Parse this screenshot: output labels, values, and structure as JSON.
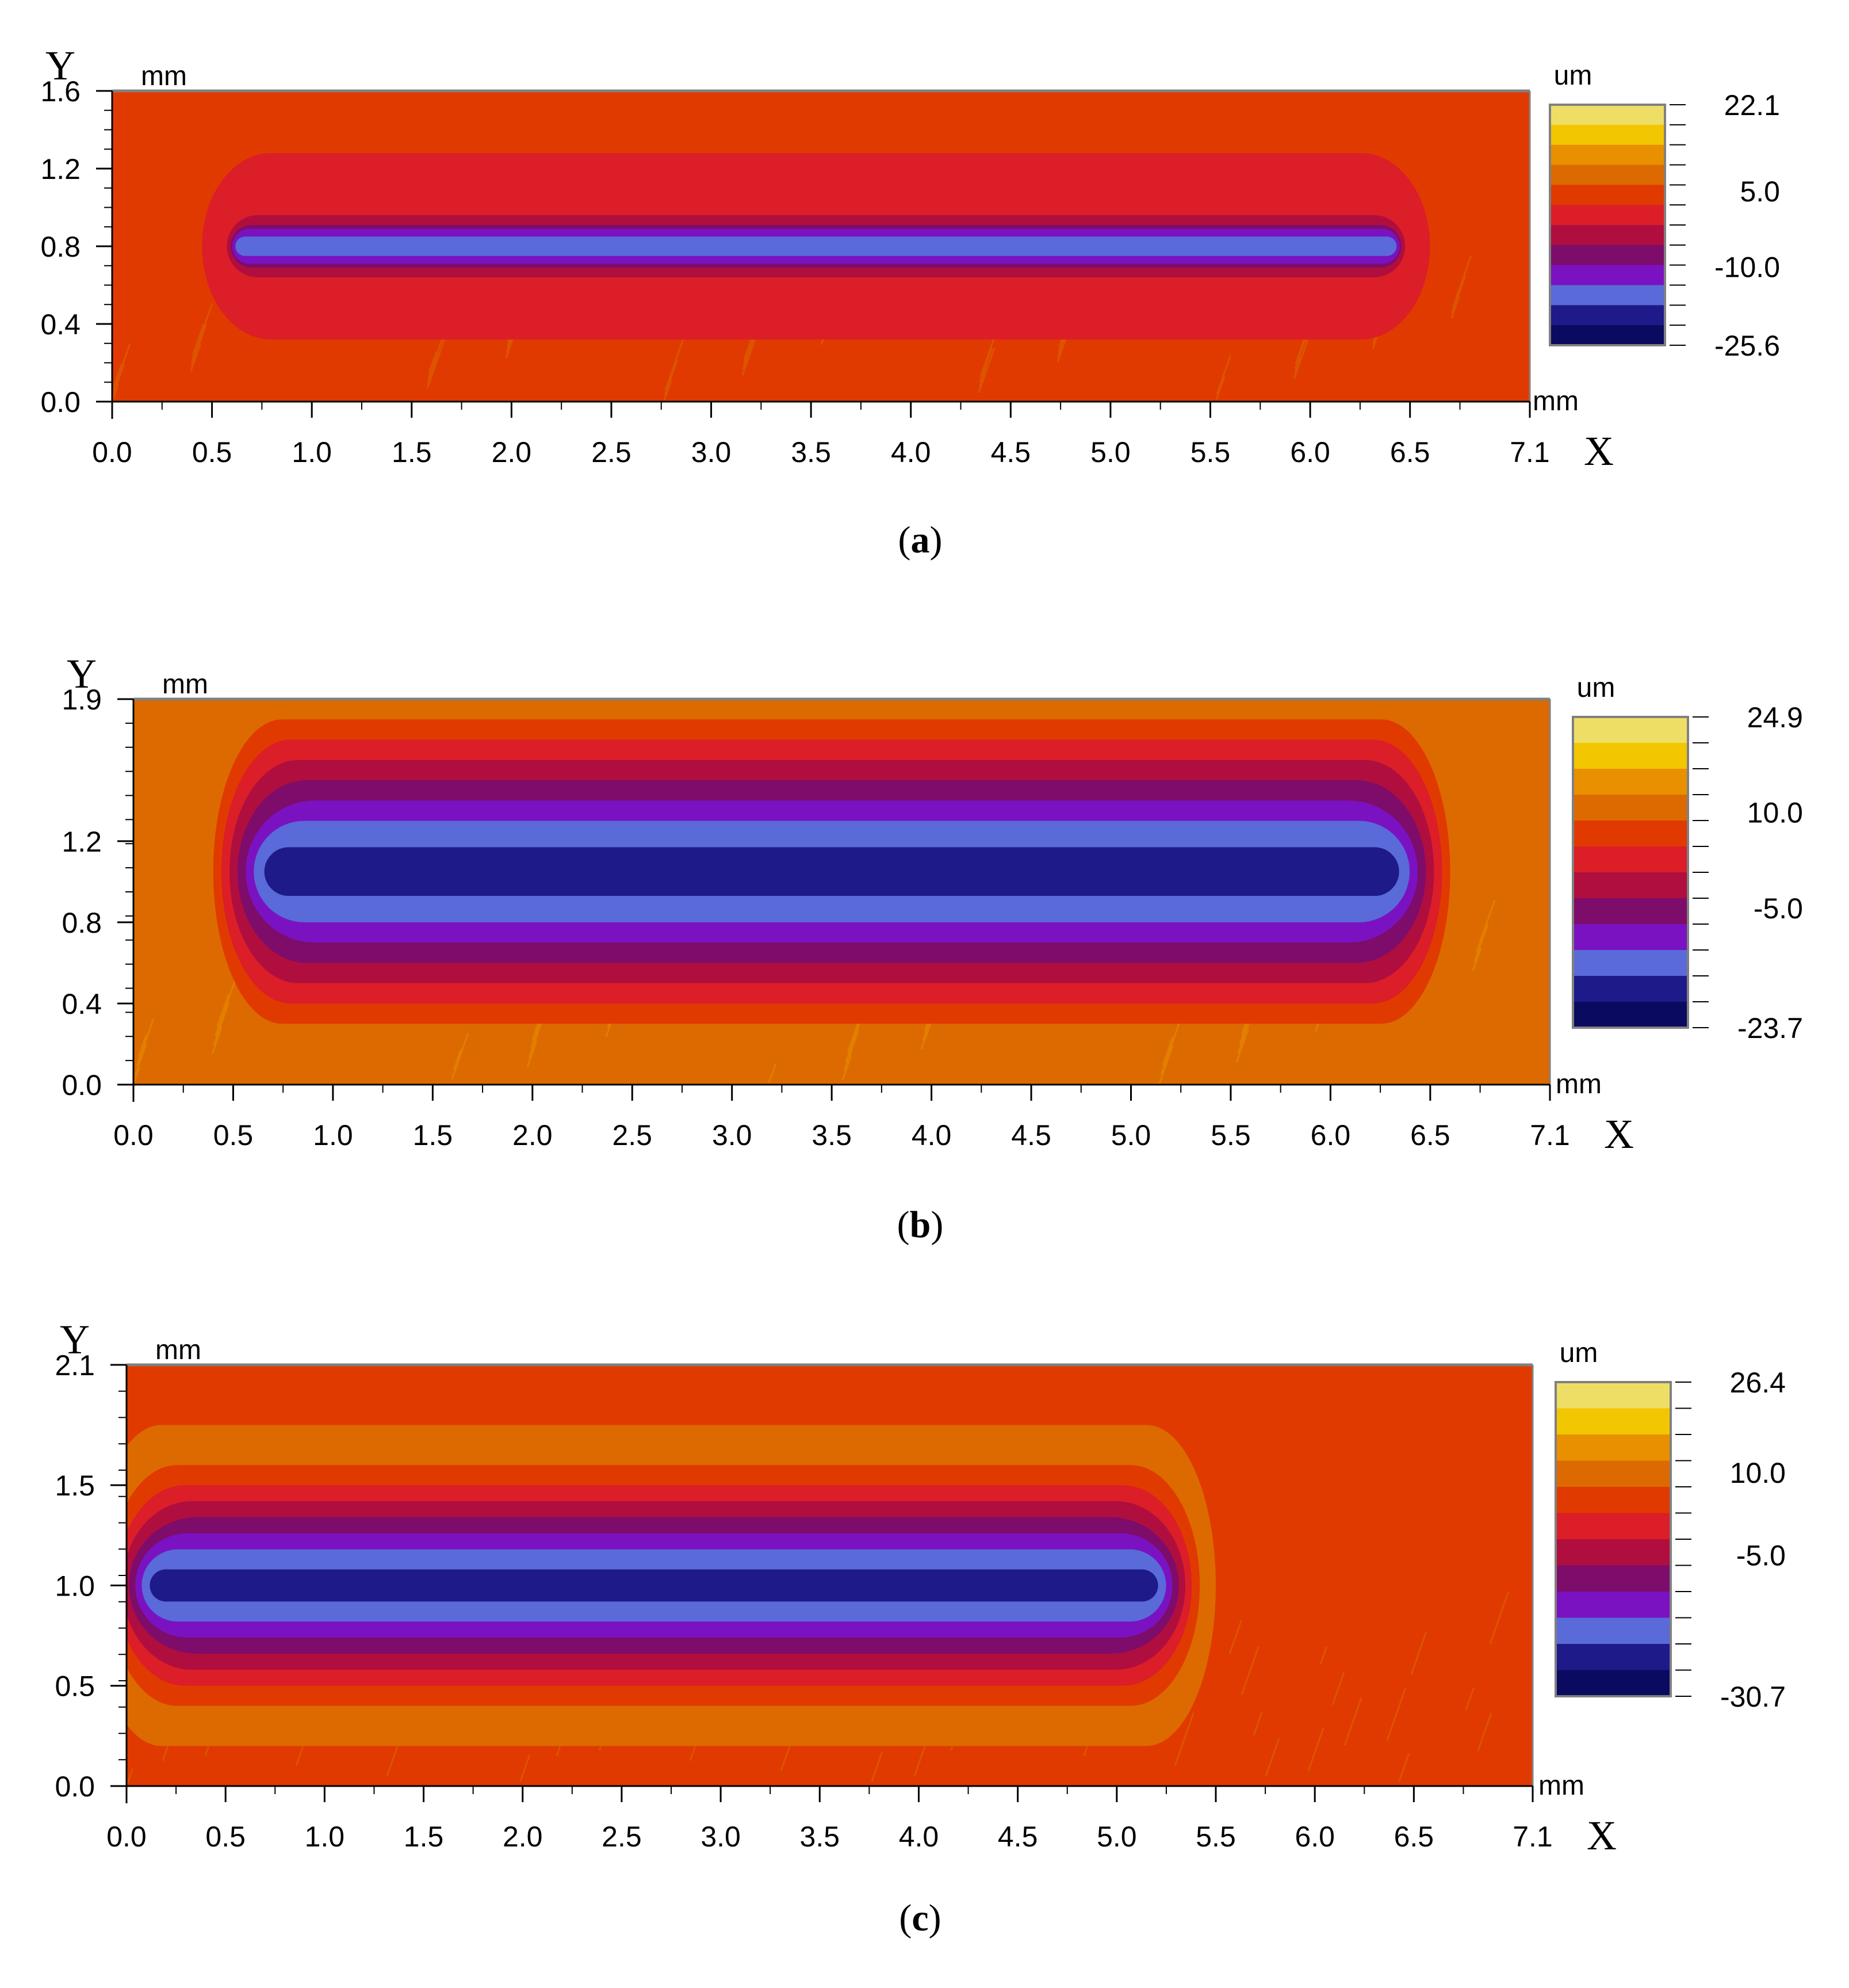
{
  "palette": [
    "#0a0a60",
    "#1e1a8a",
    "#5a6ad8",
    "#7a12c2",
    "#7e0c6a",
    "#b00e3e",
    "#dc1e28",
    "#e03a00",
    "#dc6a00",
    "#e89000",
    "#f2c600",
    "#eede66"
  ],
  "chart_data": [
    {
      "type": "heatmap",
      "caption_letter": "a",
      "x_axis_letter": "X",
      "y_axis_letter": "Y",
      "x_unit": "mm",
      "y_unit": "mm",
      "colorbar_unit_top": "um",
      "colorbar_unit_bottom": "mm",
      "xlim": [
        0,
        7.1
      ],
      "ylim": [
        0,
        1.6
      ],
      "x_ticks": [
        "0.0",
        "0.5",
        "1.0",
        "1.5",
        "2.0",
        "2.5",
        "3.0",
        "3.5",
        "4.0",
        "4.5",
        "5.0",
        "5.5",
        "6.0",
        "6.5",
        "7.1"
      ],
      "y_ticks": [
        "0.0",
        "0.4",
        "0.8",
        "1.2",
        "1.6"
      ],
      "colorbar_labels": [
        "22.1",
        "5.0",
        "-10.0",
        "-25.6"
      ],
      "z_range": [
        -25.6,
        22.1
      ],
      "background_level": 7,
      "groove": {
        "x_start": 0.45,
        "x_end": 6.6,
        "y_center": 0.8,
        "min_level": 2,
        "rings": [
          {
            "level": 6,
            "half_height": 0.48
          },
          {
            "level": 5,
            "half_height": 0.16
          },
          {
            "level": 4,
            "half_height": 0.11
          },
          {
            "level": 3,
            "half_height": 0.09
          },
          {
            "level": 2,
            "half_height": 0.05
          }
        ]
      }
    },
    {
      "type": "heatmap",
      "caption_letter": "b",
      "x_axis_letter": "X",
      "y_axis_letter": "Y",
      "x_unit": "mm",
      "y_unit": "mm",
      "colorbar_unit_top": "um",
      "colorbar_unit_bottom": "mm",
      "xlim": [
        0,
        7.1
      ],
      "ylim": [
        0,
        1.9
      ],
      "x_ticks": [
        "0.0",
        "0.5",
        "1.0",
        "1.5",
        "2.0",
        "2.5",
        "3.0",
        "3.5",
        "4.0",
        "4.5",
        "5.0",
        "5.5",
        "6.0",
        "6.5",
        "7.1"
      ],
      "y_ticks": [
        "0.0",
        "0.4",
        "0.8",
        "1.2",
        "1.9"
      ],
      "colorbar_labels": [
        "24.9",
        "10.0",
        "-5.0",
        "-23.7"
      ],
      "z_range": [
        -23.7,
        24.9
      ],
      "background_level": 8,
      "groove": {
        "x_start": 0.4,
        "x_end": 6.6,
        "y_center": 1.05,
        "min_level": 1,
        "rings": [
          {
            "level": 7,
            "half_height": 0.75
          },
          {
            "level": 6,
            "half_height": 0.65
          },
          {
            "level": 5,
            "half_height": 0.55
          },
          {
            "level": 4,
            "half_height": 0.45
          },
          {
            "level": 3,
            "half_height": 0.35
          },
          {
            "level": 2,
            "half_height": 0.25
          },
          {
            "level": 1,
            "half_height": 0.12
          }
        ]
      }
    },
    {
      "type": "heatmap",
      "caption_letter": "c",
      "x_axis_letter": "X",
      "y_axis_letter": "Y",
      "x_unit": "mm",
      "y_unit": "mm",
      "colorbar_unit_top": "um",
      "colorbar_unit_bottom": "mm",
      "xlim": [
        0,
        7.1
      ],
      "ylim": [
        0,
        2.1
      ],
      "x_ticks": [
        "0.0",
        "0.5",
        "1.0",
        "1.5",
        "2.0",
        "2.5",
        "3.0",
        "3.5",
        "4.0",
        "4.5",
        "5.0",
        "5.5",
        "6.0",
        "6.5",
        "7.1"
      ],
      "y_ticks": [
        "0.0",
        "0.5",
        "1.0",
        "1.5",
        "2.1"
      ],
      "colorbar_labels": [
        "26.4",
        "10.0",
        "-5.0",
        "-30.7"
      ],
      "z_range": [
        -30.7,
        26.4
      ],
      "background_level": 7,
      "groove": {
        "x_start": 0.0,
        "x_end": 5.5,
        "y_center": 1.0,
        "min_level": 1,
        "rings": [
          {
            "level": 8,
            "half_height": 0.8
          },
          {
            "level": 7,
            "half_height": 0.6
          },
          {
            "level": 6,
            "half_height": 0.5
          },
          {
            "level": 5,
            "half_height": 0.42
          },
          {
            "level": 4,
            "half_height": 0.34
          },
          {
            "level": 3,
            "half_height": 0.26
          },
          {
            "level": 2,
            "half_height": 0.18
          },
          {
            "level": 1,
            "half_height": 0.08
          }
        ]
      }
    }
  ]
}
